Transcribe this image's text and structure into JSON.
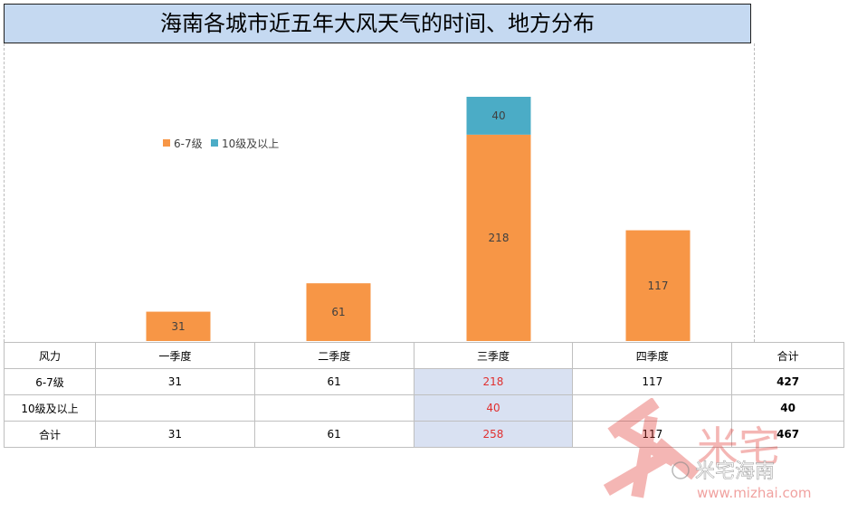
{
  "title": "海南各城市近五年大风天气的时间、地方分布",
  "chart_data": {
    "type": "bar",
    "stacked": true,
    "categories": [
      "一季度",
      "二季度",
      "三季度",
      "四季度"
    ],
    "series": [
      {
        "name": "6-7级",
        "values": [
          31,
          61,
          218,
          117
        ],
        "color": "#f79646"
      },
      {
        "name": "10级及以上",
        "values": [
          null,
          null,
          40,
          null
        ],
        "color": "#4bacc6"
      }
    ],
    "ylim": [
      0,
      258
    ],
    "legend": "top-left",
    "grid": false
  },
  "table": {
    "header": [
      "风力",
      "一季度",
      "二季度",
      "三季度",
      "四季度",
      "合计"
    ],
    "rows": [
      [
        "6-7级",
        "31",
        "61",
        "218",
        "117",
        "427"
      ],
      [
        "10级及以上",
        "",
        "",
        "40",
        "",
        "40"
      ],
      [
        "合计",
        "31",
        "61",
        "258",
        "117",
        "467"
      ]
    ]
  },
  "watermark": {
    "brand": "米宅",
    "sub": "米宅海南",
    "url": "www.mizhai.com"
  }
}
